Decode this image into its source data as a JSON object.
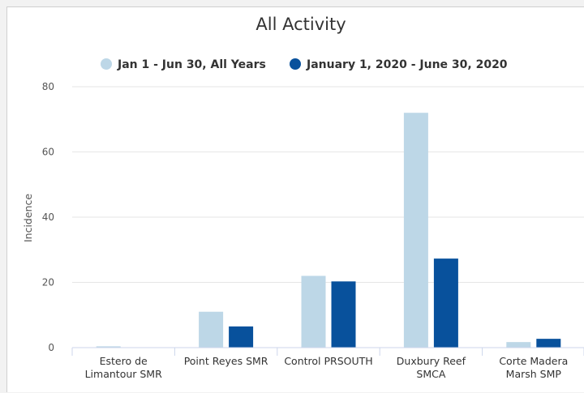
{
  "chart_data": {
    "type": "bar",
    "title": "All Activity",
    "ylabel": "Incidence",
    "xlabel": "",
    "ylim": [
      0,
      80
    ],
    "yticks": [
      0,
      20,
      40,
      60,
      80
    ],
    "grid": true,
    "legend_position": "top-center",
    "categories": [
      [
        "Estero de",
        "Limantour SMR"
      ],
      [
        "Point Reyes SMR"
      ],
      [
        "Control PRSOUTH"
      ],
      [
        "Duxbury Reef",
        "SMCA"
      ],
      [
        "Corte Madera",
        "Marsh SMP"
      ]
    ],
    "series": [
      {
        "name": "Jan 1 - Jun 30, All Years",
        "color": "#bdd7e7",
        "values": [
          0.4,
          11,
          22,
          72,
          1.7
        ]
      },
      {
        "name": "January 1, 2020 - June 30, 2020",
        "color": "#08519c",
        "values": [
          0,
          6.5,
          20.3,
          27.3,
          2.7
        ]
      }
    ]
  }
}
